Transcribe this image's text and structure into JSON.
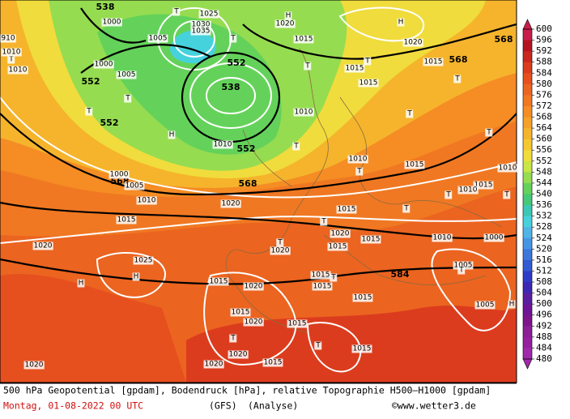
{
  "map_labels": [
    "538",
    "1000",
    "1005",
    "1025",
    "1030",
    "1035",
    "T",
    "H",
    "1020",
    "1015",
    "H",
    "1020",
    "568",
    "568",
    "1015",
    "552",
    "538",
    "T",
    "T",
    "T",
    "1015",
    "1015",
    "T",
    "T",
    "T",
    "552",
    "552",
    "552",
    "T",
    "T",
    "1010",
    "1010",
    "910",
    "1000",
    "1005",
    "T",
    "H",
    "1010",
    "1010",
    "T",
    "1010",
    "T",
    "1015",
    "568",
    "1005",
    "1000",
    "568",
    "1010",
    "1020",
    "1015",
    "T",
    "1015",
    "T",
    "1020",
    "1020",
    "1015",
    "1010",
    "1000",
    "T",
    "1020",
    "1015",
    "1025",
    "H",
    "H",
    "1015",
    "1020",
    "1015",
    "T",
    "1015",
    "584",
    "1015",
    "1005",
    "T",
    "1005",
    "H",
    "1015",
    "1020",
    "1015",
    "T",
    "T",
    "1020",
    "1015",
    "1015",
    "1020",
    "1020",
    "T",
    "1015",
    "1010",
    "T",
    "1010"
  ],
  "colorbar": {
    "ticks": [
      600,
      596,
      592,
      588,
      584,
      580,
      576,
      572,
      568,
      564,
      560,
      556,
      552,
      548,
      544,
      540,
      536,
      532,
      528,
      524,
      520,
      516,
      512,
      508,
      504,
      500,
      496,
      492,
      488,
      484,
      480
    ],
    "colors": [
      "#c81e4a",
      "#b4141e",
      "#c8281e",
      "#dc3c1e",
      "#e6501e",
      "#eb6420",
      "#f07822",
      "#f58c24",
      "#f5a028",
      "#f5b42c",
      "#f5c832",
      "#f0dc3c",
      "#c8e646",
      "#96dc50",
      "#64d25a",
      "#46c878",
      "#3cc8b4",
      "#46d2dc",
      "#50b4e6",
      "#4696e6",
      "#3c78dc",
      "#325ad2",
      "#2d3cc8",
      "#3c28b4",
      "#5a1ea0",
      "#6e1496",
      "#7d148c",
      "#8c1e96",
      "#961ea0",
      "#a028aa"
    ]
  },
  "caption": {
    "line1": "500 hPa Geopotential [gpdam], Bodendruck [hPa], relative Topographie H500–H1000 [gpdam]",
    "date": "Montag, 01-08-2022  00 UTC",
    "model": "(GFS)",
    "mode": "(Analyse)",
    "copyright": "©www.wetter3.de"
  }
}
